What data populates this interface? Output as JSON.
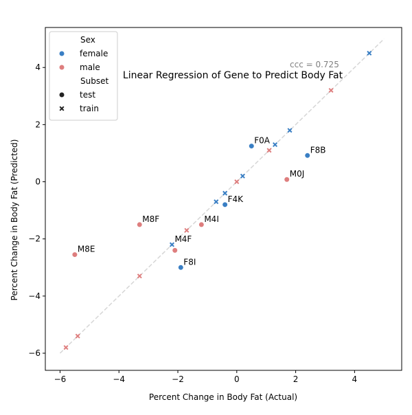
{
  "chart_data": {
    "type": "scatter",
    "title": "Linear Regression of Gene to Predict Body Fat",
    "xlabel": "Percent Change in Body Fat (Actual)",
    "ylabel": "Percent Change in Body Fat (Predicted)",
    "xlim": [
      -6.5,
      5.6
    ],
    "ylim": [
      -6.6,
      5.4
    ],
    "xticks": [
      -6,
      -4,
      -2,
      0,
      2,
      4
    ],
    "yticks": [
      -6,
      -4,
      -2,
      0,
      2,
      4
    ],
    "grid": false,
    "annotation": "ccc = 0.725",
    "annotation_pos": {
      "x": 1.8,
      "y": 4.0
    },
    "identity_line": {
      "x": [
        -6,
        5
      ],
      "y": [
        -6,
        5
      ]
    },
    "colors": {
      "female": "#3a7fc4",
      "male": "#de7e7e",
      "identity": "#d6d6d6",
      "annotation": "#808080"
    },
    "legend": {
      "position": "top-left",
      "hue_title": "Sex",
      "hue_items": [
        {
          "label": "female",
          "color": "#3a7fc4"
        },
        {
          "label": "male",
          "color": "#de7e7e"
        }
      ],
      "style_title": "Subset",
      "style_items": [
        {
          "label": "test",
          "marker": "circle"
        },
        {
          "label": "train",
          "marker": "x"
        }
      ]
    },
    "points": [
      {
        "x": -5.5,
        "y": -2.55,
        "sex": "male",
        "subset": "test",
        "label": "M8E"
      },
      {
        "x": -3.3,
        "y": -1.5,
        "sex": "male",
        "subset": "test",
        "label": "M8F"
      },
      {
        "x": -2.1,
        "y": -2.4,
        "sex": "male",
        "subset": "test",
        "label": ""
      },
      {
        "x": -1.2,
        "y": -1.5,
        "sex": "male",
        "subset": "test",
        "label": "M4I"
      },
      {
        "x": 1.7,
        "y": 0.08,
        "sex": "male",
        "subset": "test",
        "label": "M0J"
      },
      {
        "x": -1.9,
        "y": -3.0,
        "sex": "female",
        "subset": "test",
        "label": "F8I"
      },
      {
        "x": -0.4,
        "y": -0.8,
        "sex": "female",
        "subset": "test",
        "label": "F4K"
      },
      {
        "x": 0.5,
        "y": 1.25,
        "sex": "female",
        "subset": "test",
        "label": "F0A"
      },
      {
        "x": 2.4,
        "y": 0.92,
        "sex": "female",
        "subset": "test",
        "label": "F8B"
      },
      {
        "x": -2.2,
        "y": -2.2,
        "sex": "female",
        "subset": "train",
        "label": "M4F"
      },
      {
        "x": -0.7,
        "y": -0.7,
        "sex": "female",
        "subset": "train",
        "label": ""
      },
      {
        "x": -0.4,
        "y": -0.4,
        "sex": "female",
        "subset": "train",
        "label": ""
      },
      {
        "x": 0.2,
        "y": 0.2,
        "sex": "female",
        "subset": "train",
        "label": ""
      },
      {
        "x": 1.3,
        "y": 1.3,
        "sex": "female",
        "subset": "train",
        "label": ""
      },
      {
        "x": 1.8,
        "y": 1.8,
        "sex": "female",
        "subset": "train",
        "label": ""
      },
      {
        "x": 4.5,
        "y": 4.5,
        "sex": "female",
        "subset": "train",
        "label": ""
      },
      {
        "x": -5.8,
        "y": -5.8,
        "sex": "male",
        "subset": "train",
        "label": ""
      },
      {
        "x": -5.4,
        "y": -5.4,
        "sex": "male",
        "subset": "train",
        "label": ""
      },
      {
        "x": -3.3,
        "y": -3.3,
        "sex": "male",
        "subset": "train",
        "label": ""
      },
      {
        "x": -1.7,
        "y": -1.7,
        "sex": "male",
        "subset": "train",
        "label": ""
      },
      {
        "x": 0.0,
        "y": 0.0,
        "sex": "male",
        "subset": "train",
        "label": ""
      },
      {
        "x": 1.1,
        "y": 1.1,
        "sex": "male",
        "subset": "train",
        "label": ""
      },
      {
        "x": 3.2,
        "y": 3.2,
        "sex": "male",
        "subset": "train",
        "label": ""
      }
    ]
  }
}
